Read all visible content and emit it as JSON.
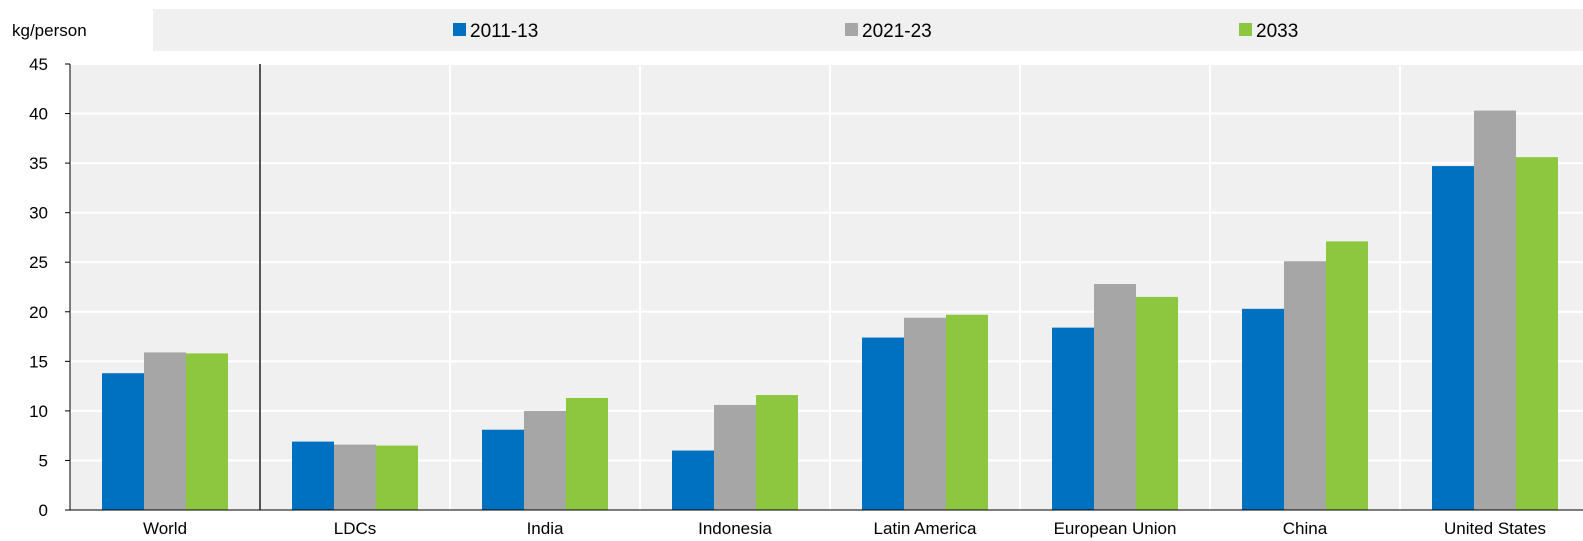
{
  "chart_data": {
    "type": "bar",
    "ylabel": "kg/person",
    "ylim": [
      0,
      45
    ],
    "yticks": [
      0,
      5,
      10,
      15,
      20,
      25,
      30,
      35,
      40,
      45
    ],
    "grid": true,
    "legend_position": "top",
    "categories": [
      "World",
      "LDCs",
      "India",
      "Indonesia",
      "Latin America",
      "European Union",
      "China",
      "United States"
    ],
    "series": [
      {
        "name": "2011-13",
        "color": "#0070c0",
        "values": [
          13.8,
          6.9,
          8.1,
          6.0,
          17.4,
          18.4,
          20.3,
          34.7
        ]
      },
      {
        "name": "2021-23",
        "color": "#a6a6a6",
        "values": [
          15.9,
          6.6,
          10.0,
          10.6,
          19.4,
          22.8,
          25.1,
          40.3
        ]
      },
      {
        "name": "2033",
        "color": "#8dc63f",
        "values": [
          15.8,
          6.5,
          11.3,
          11.6,
          19.7,
          21.5,
          27.1,
          35.6
        ]
      }
    ]
  }
}
